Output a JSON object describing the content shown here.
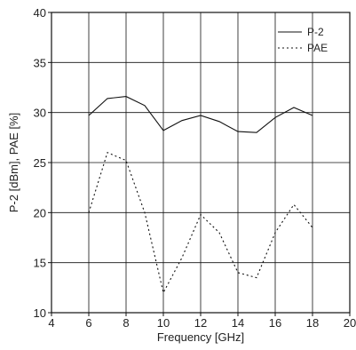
{
  "chart_data": {
    "type": "line",
    "title": "",
    "xlabel": "Frequency [GHz]",
    "ylabel": "P-2 [dBm], PAE [%]",
    "xlim": [
      4,
      20
    ],
    "ylim": [
      10,
      40
    ],
    "x_ticks": [
      4,
      6,
      8,
      10,
      12,
      14,
      16,
      18,
      20
    ],
    "y_ticks": [
      10,
      15,
      20,
      25,
      30,
      35,
      40
    ],
    "grid": true,
    "legend_position": "top-right",
    "series": [
      {
        "name": "P-2",
        "style": "solid",
        "color": "#111111",
        "x": [
          6,
          7,
          8,
          9,
          10,
          11,
          12,
          13,
          14,
          15,
          16,
          17,
          18
        ],
        "y": [
          29.7,
          31.4,
          31.6,
          30.7,
          28.2,
          29.2,
          29.7,
          29.1,
          28.1,
          28.0,
          29.5,
          30.5,
          29.7
        ]
      },
      {
        "name": "PAE",
        "style": "dotted",
        "color": "#111111",
        "x": [
          6,
          7,
          8,
          9,
          10,
          11,
          12,
          13,
          14,
          15,
          16,
          17,
          18
        ],
        "y": [
          20.0,
          26.0,
          25.2,
          20.0,
          12.0,
          15.5,
          19.8,
          18.0,
          14.0,
          13.5,
          18.0,
          20.8,
          18.5
        ]
      }
    ]
  }
}
